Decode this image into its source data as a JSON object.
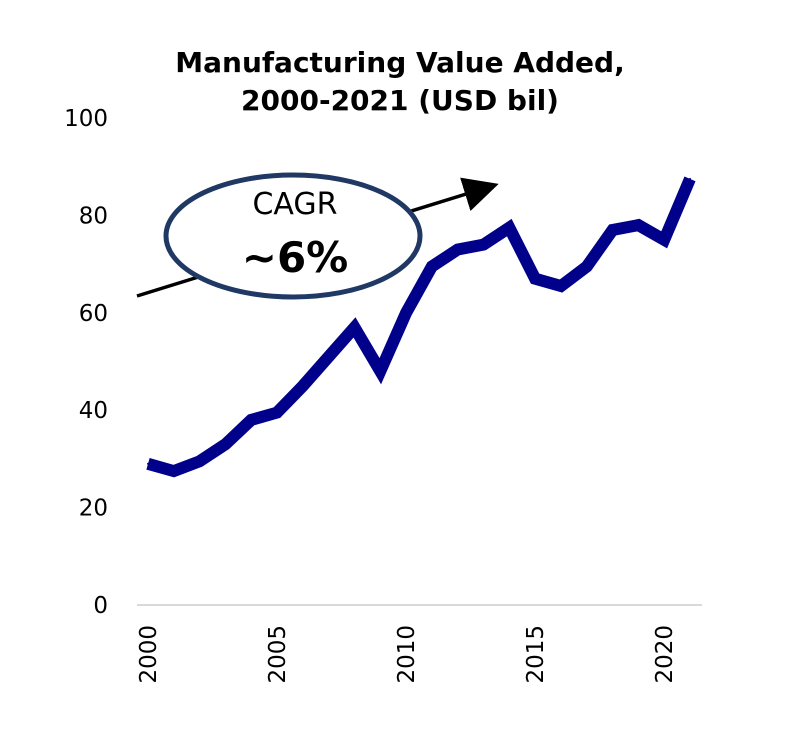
{
  "chart_data": {
    "type": "line",
    "title_line1": "Manufacturing Value Added,",
    "title_line2": "2000-2021 (USD bil)",
    "title": "Manufacturing Value Added, 2000-2021 (USD bil)",
    "xlabel": "",
    "ylabel": "",
    "ylim": [
      0,
      100
    ],
    "xlim": [
      2000,
      2021
    ],
    "yticks": [
      0,
      20,
      40,
      60,
      80,
      100
    ],
    "xticks": [
      2000,
      2005,
      2010,
      2015,
      2020
    ],
    "grid": false,
    "legend": "none",
    "series": [
      {
        "color": "#00008B",
        "x": [
          2000,
          2001,
          2002,
          2003,
          2004,
          2005,
          2006,
          2007,
          2008,
          2009,
          2010,
          2011,
          2012,
          2013,
          2014,
          2015,
          2016,
          2017,
          2018,
          2019,
          2020,
          2021
        ],
        "values": [
          29,
          27.5,
          29.5,
          33,
          38,
          39.5,
          45,
          51,
          57,
          48,
          60,
          69.5,
          73,
          74,
          77.5,
          67,
          65.5,
          69.5,
          77,
          78,
          75,
          87.5
        ]
      }
    ],
    "annotation": {
      "label": "CAGR",
      "value": "~6%",
      "color": "#1F3864"
    }
  }
}
